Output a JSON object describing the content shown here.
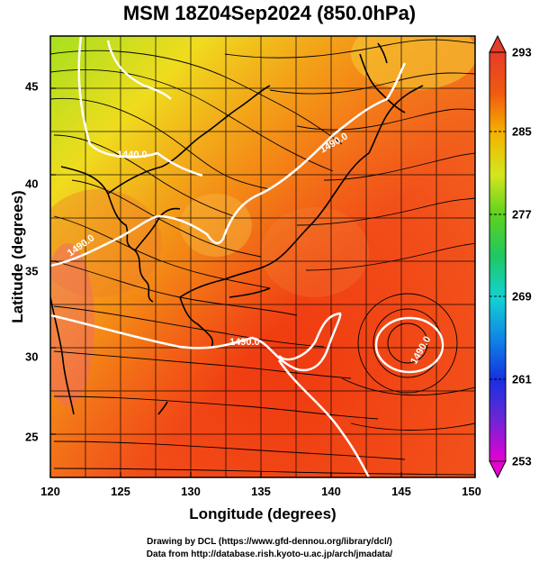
{
  "title": "MSM 18Z04Sep2024 (850.0hPa)",
  "xaxis": {
    "label": "Longitude (degrees)",
    "ticks": [
      "120",
      "125",
      "130",
      "135",
      "140",
      "145",
      "150"
    ],
    "range": [
      120,
      150
    ]
  },
  "yaxis": {
    "label": "Latitude  (degrees)",
    "ticks": [
      "25",
      "30",
      "35",
      "40",
      "45"
    ],
    "range": [
      22.6,
      47.6
    ]
  },
  "colorbar": {
    "ticks": [
      "293",
      "285",
      "277",
      "269",
      "261",
      "253"
    ],
    "range": [
      253,
      293
    ]
  },
  "contour_labels": [
    "1440.0",
    "1490.0",
    "1490.0",
    "1490.0",
    "1490.0"
  ],
  "credits": {
    "line1": "Drawing by DCL (https://www.gfd-dennou.org/library/dcl/)",
    "line2": "Data from http://database.rish.kyoto-u.ac.jp/arch/jmadata/"
  }
}
